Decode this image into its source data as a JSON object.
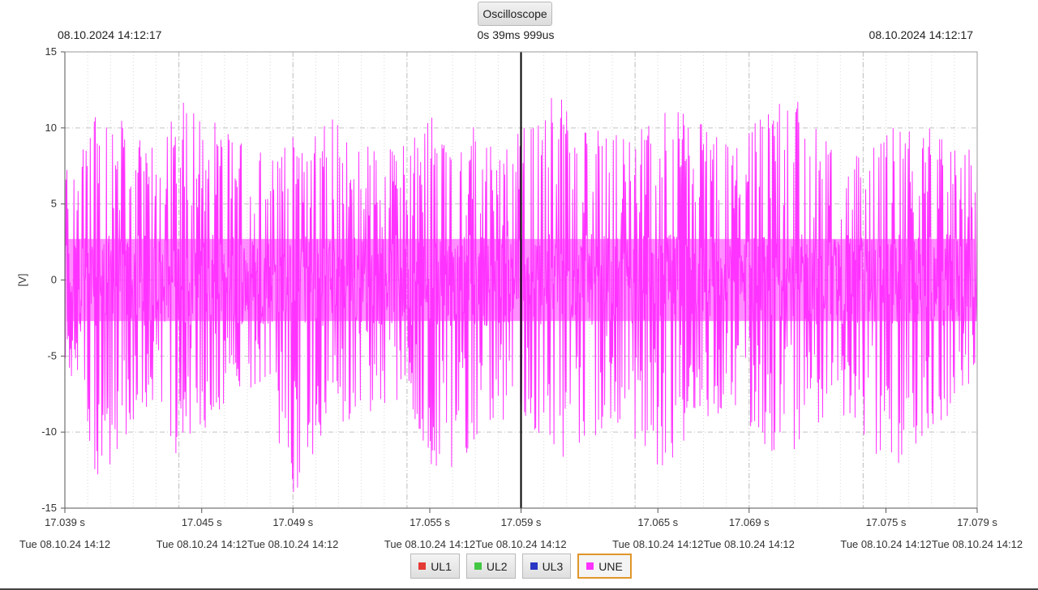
{
  "header": {
    "title_button": "Oscilloscope",
    "left_timestamp": "08.10.2024 14:12:17",
    "center_label": "0s 39ms 999us",
    "right_timestamp": "08.10.2024 14:12:17"
  },
  "legend": [
    {
      "label": "UL1",
      "color": "#e53935",
      "active": false
    },
    {
      "label": "UL2",
      "color": "#43c743",
      "active": false
    },
    {
      "label": "UL3",
      "color": "#2a36c4",
      "active": false
    },
    {
      "label": "UNE",
      "color": "#ff33ff",
      "active": true
    }
  ],
  "chart_data": {
    "type": "line",
    "ylabel": "[V]",
    "ylim": [
      -15,
      15
    ],
    "y_ticks": [
      15,
      10,
      5,
      0,
      -5,
      -10,
      -15
    ],
    "xlim": [
      17.039,
      17.079
    ],
    "x_ticks": [
      {
        "value": 17.039,
        "label": "17.039 s",
        "sublabel": "Tue 08.10.24 14:12"
      },
      {
        "value": 17.045,
        "label": "17.045 s",
        "sublabel": "Tue 08.10.24 14:12"
      },
      {
        "value": 17.049,
        "label": "17.049 s",
        "sublabel": "Tue 08.10.24 14:12"
      },
      {
        "value": 17.055,
        "label": "17.055 s",
        "sublabel": "Tue 08.10.24 14:12"
      },
      {
        "value": 17.059,
        "label": "17.059 s",
        "sublabel": "Tue 08.10.24 14:12"
      },
      {
        "value": 17.065,
        "label": "17.065 s",
        "sublabel": "Tue 08.10.24 14:12"
      },
      {
        "value": 17.069,
        "label": "17.069 s",
        "sublabel": "Tue 08.10.24 14:12"
      },
      {
        "value": 17.075,
        "label": "17.075 s",
        "sublabel": "Tue 08.10.24 14:12"
      },
      {
        "value": 17.079,
        "label": "17.079 s",
        "sublabel": "Tue 08.10.24 14:12"
      }
    ],
    "cursor_x": 17.059,
    "grid": true,
    "series": [
      {
        "name": "UNE",
        "color": "#ff33ff",
        "envelope": {
          "x": [
            17.039,
            17.0405,
            17.042,
            17.043,
            17.044,
            17.0455,
            17.047,
            17.048,
            17.049,
            17.0505,
            17.052,
            17.053,
            17.054,
            17.0555,
            17.057,
            17.058,
            17.059,
            17.0605,
            17.062,
            17.063,
            17.064,
            17.0655,
            17.067,
            17.068,
            17.069,
            17.0705,
            17.072,
            17.073,
            17.074,
            17.0755,
            17.077,
            17.078,
            17.079
          ],
          "upper": [
            7.5,
            11.8,
            9.8,
            8.5,
            12.2,
            10.5,
            9.8,
            8.0,
            9.5,
            11.0,
            9.0,
            8.5,
            9.0,
            12.5,
            10.0,
            8.5,
            10.0,
            12.5,
            10.0,
            9.5,
            9.5,
            12.5,
            10.5,
            9.0,
            10.0,
            13.0,
            10.0,
            8.5,
            8.5,
            10.5,
            10.0,
            10.0,
            9.5
          ],
          "lower": [
            -5.0,
            -13.5,
            -9.5,
            -8.5,
            -12.0,
            -9.0,
            -7.0,
            -8.5,
            -14.5,
            -10.5,
            -9.0,
            -8.5,
            -9.0,
            -14.0,
            -10.5,
            -9.5,
            -9.0,
            -12.5,
            -11.0,
            -9.0,
            -11.5,
            -12.5,
            -9.5,
            -8.5,
            -10.0,
            -12.0,
            -9.5,
            -8.5,
            -11.0,
            -12.5,
            -9.5,
            -9.0,
            -5.5
          ],
          "core": 3.0
        }
      }
    ]
  }
}
